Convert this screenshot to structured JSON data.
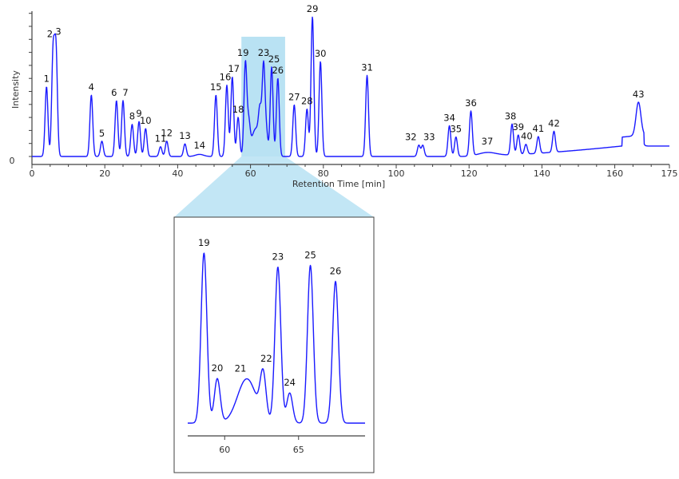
{
  "chart_data": [
    {
      "name": "main",
      "type": "line",
      "xlabel": "Retention Time [min]",
      "ylabel": "Intensity",
      "y_zero_label": "0",
      "xlim": [
        0,
        175
      ],
      "x_ticks": [
        0,
        20,
        40,
        60,
        80,
        100,
        120,
        140,
        160,
        175
      ],
      "x_tick_labels": [
        "0",
        "20",
        "40",
        "60",
        "80",
        "100",
        "120",
        "140",
        "160",
        "175"
      ],
      "color": "#1a1aff",
      "highlight_color": "#b9e2f3",
      "highlight_x": [
        57.5,
        69.5
      ],
      "peaks": [
        {
          "label": "1",
          "x": 4.0,
          "y": 0.5
        },
        {
          "label": "2",
          "x": 5.8,
          "y": 0.73
        },
        {
          "label": "3",
          "x": 6.6,
          "y": 0.75
        },
        {
          "label": "4",
          "x": 16.3,
          "y": 0.44
        },
        {
          "label": "5",
          "x": 19.2,
          "y": 0.11
        },
        {
          "label": "6",
          "x": 23.2,
          "y": 0.4
        },
        {
          "label": "7",
          "x": 25.0,
          "y": 0.4
        },
        {
          "label": "8",
          "x": 27.5,
          "y": 0.23
        },
        {
          "label": "9",
          "x": 29.4,
          "y": 0.25
        },
        {
          "label": "10",
          "x": 31.2,
          "y": 0.2
        },
        {
          "label": "11",
          "x": 35.3,
          "y": 0.07
        },
        {
          "label": "12",
          "x": 37.0,
          "y": 0.11
        },
        {
          "label": "13",
          "x": 42.0,
          "y": 0.09
        },
        {
          "label": "14",
          "x": 46.0,
          "y": 0.02
        },
        {
          "label": "15",
          "x": 50.5,
          "y": 0.44
        },
        {
          "label": "16",
          "x": 53.5,
          "y": 0.51
        },
        {
          "label": "17",
          "x": 55.0,
          "y": 0.57
        },
        {
          "label": "18",
          "x": 56.6,
          "y": 0.28
        },
        {
          "label": "19",
          "x": 58.6,
          "y": 0.66
        },
        {
          "label": "20",
          "x": 59.5,
          "y": 0.2
        },
        {
          "label": "21",
          "x": 61.5,
          "y": 0.2
        },
        {
          "label": "22",
          "x": 62.6,
          "y": 0.22
        },
        {
          "label": "23",
          "x": 63.6,
          "y": 0.61
        },
        {
          "label": "24",
          "x": 64.4,
          "y": 0.15
        },
        {
          "label": "25",
          "x": 65.8,
          "y": 0.64
        },
        {
          "label": "26",
          "x": 67.5,
          "y": 0.56
        },
        {
          "label": "27",
          "x": 72.0,
          "y": 0.37
        },
        {
          "label": "28",
          "x": 75.5,
          "y": 0.34
        },
        {
          "label": "29",
          "x": 77.0,
          "y": 1.0
        },
        {
          "label": "30",
          "x": 79.2,
          "y": 0.68
        },
        {
          "label": "31",
          "x": 92.0,
          "y": 0.58
        },
        {
          "label": "32",
          "x": 106.2,
          "y": 0.08
        },
        {
          "label": "33",
          "x": 107.3,
          "y": 0.08
        },
        {
          "label": "34",
          "x": 114.6,
          "y": 0.22
        },
        {
          "label": "35",
          "x": 116.4,
          "y": 0.14
        },
        {
          "label": "36",
          "x": 120.5,
          "y": 0.32
        },
        {
          "label": "37",
          "x": 125.0,
          "y": 0.03
        },
        {
          "label": "38",
          "x": 131.8,
          "y": 0.22
        },
        {
          "label": "39",
          "x": 133.5,
          "y": 0.14
        },
        {
          "label": "40",
          "x": 135.6,
          "y": 0.07
        },
        {
          "label": "41",
          "x": 139.0,
          "y": 0.12
        },
        {
          "label": "42",
          "x": 143.3,
          "y": 0.15
        },
        {
          "label": "43",
          "x": 166.5,
          "y": 0.24
        }
      ]
    },
    {
      "name": "inset",
      "type": "line",
      "xlim": [
        57.5,
        69.5
      ],
      "x_ticks": [
        60,
        65
      ],
      "x_tick_labels": [
        "60",
        "65"
      ],
      "color": "#1a1aff",
      "peaks": [
        {
          "label": "19",
          "x": 58.6,
          "y": 0.96
        },
        {
          "label": "20",
          "x": 59.5,
          "y": 0.25
        },
        {
          "label": "21",
          "x": 61.5,
          "y": 0.25
        },
        {
          "label": "22",
          "x": 62.6,
          "y": 0.25
        },
        {
          "label": "23",
          "x": 63.6,
          "y": 0.88
        },
        {
          "label": "24",
          "x": 64.4,
          "y": 0.17
        },
        {
          "label": "25",
          "x": 65.8,
          "y": 0.89
        },
        {
          "label": "26",
          "x": 67.5,
          "y": 0.8
        }
      ]
    }
  ]
}
